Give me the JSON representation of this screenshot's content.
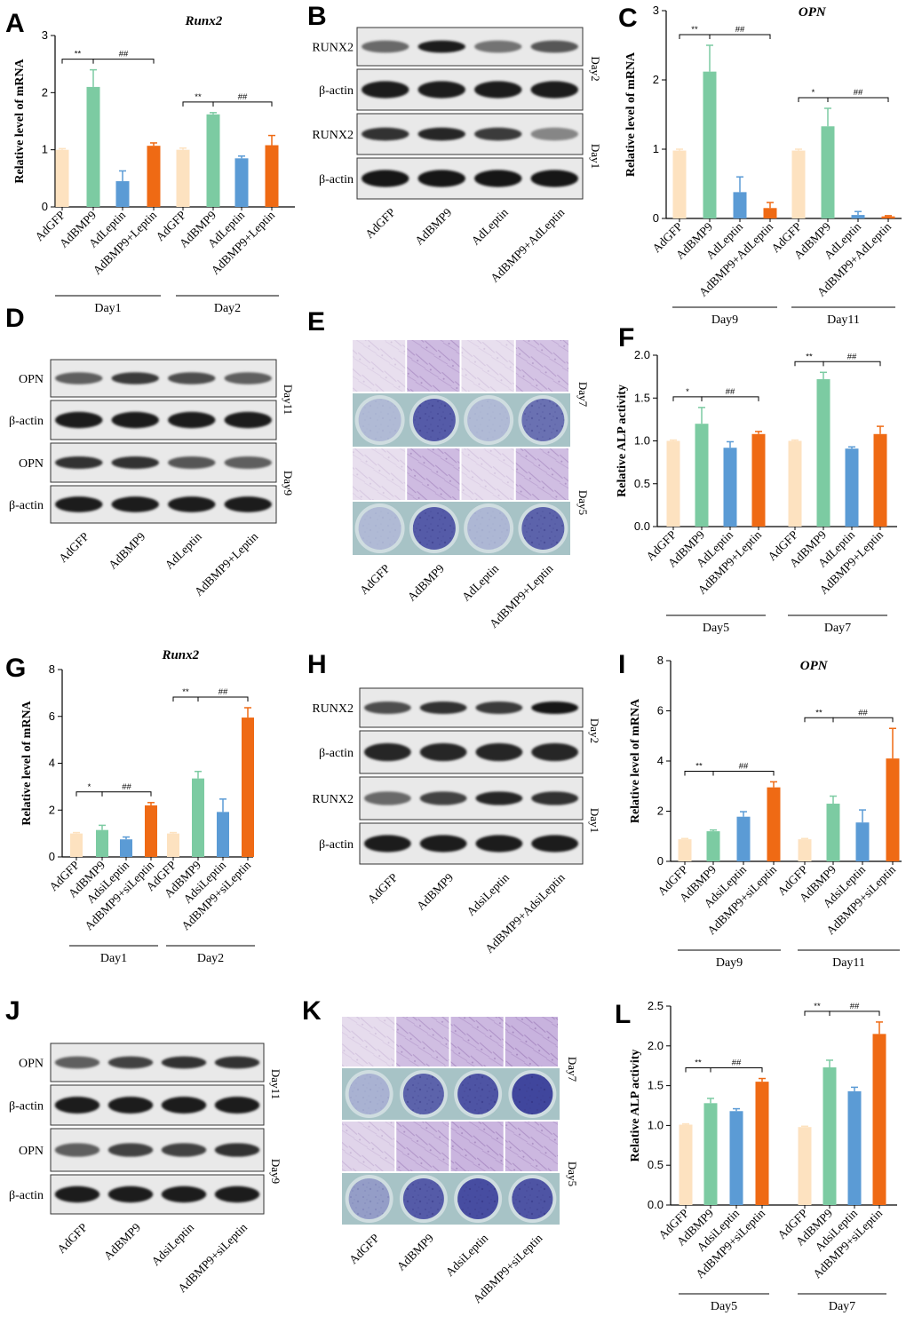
{
  "colors": {
    "AdGFP": "#fde2c0",
    "AdBMP9": "#7ccba2",
    "AdLeptin": "#5b9bd5",
    "Combo": "#ef6a14"
  },
  "panels": {
    "A": {
      "letter": "A"
    },
    "B": {
      "letter": "B"
    },
    "C": {
      "letter": "C"
    },
    "D": {
      "letter": "D"
    },
    "E": {
      "letter": "E"
    },
    "F": {
      "letter": "F"
    },
    "G": {
      "letter": "G"
    },
    "H": {
      "letter": "H"
    },
    "I": {
      "letter": "I"
    },
    "J": {
      "letter": "J"
    },
    "K": {
      "letter": "K"
    },
    "L": {
      "letter": "L"
    }
  },
  "chart_data": [
    {
      "id": "A",
      "type": "bar",
      "title": "Runx2",
      "ylabel": "Relative level of mRNA",
      "ylim": [
        0,
        3
      ],
      "yticks": [
        "0",
        "1",
        "2",
        "3"
      ],
      "categories": [
        "AdGFP",
        "AdBMP9",
        "AdLeptin",
        "AdBMP9+Leptin",
        "AdGFP",
        "AdBMP9",
        "AdLeptin",
        "AdBMP9+Leptin"
      ],
      "values": [
        1.0,
        2.1,
        0.45,
        1.07,
        1.0,
        1.62,
        0.85,
        1.08
      ],
      "errors": [
        0.02,
        0.3,
        0.18,
        0.05,
        0.03,
        0.03,
        0.04,
        0.17
      ],
      "groups": [
        {
          "name": "Day1"
        },
        {
          "name": "Day2"
        }
      ],
      "sig": [
        {
          "pair": [
            0,
            1
          ],
          "label": "**"
        },
        {
          "pair": [
            1,
            3
          ],
          "label": "##"
        },
        {
          "pair": [
            4,
            5
          ],
          "label": "**"
        },
        {
          "pair": [
            5,
            7
          ],
          "label": "##"
        }
      ]
    },
    {
      "id": "C",
      "type": "bar",
      "title": "OPN",
      "ylabel": "Relative level of mRNA",
      "ylim": [
        0,
        3
      ],
      "yticks": [
        "0",
        "1",
        "2",
        "3"
      ],
      "categories": [
        "AdGFP",
        "AdBMP9",
        "AdLeptin",
        "AdBMP9+AdLeptin",
        "AdGFP",
        "AdBMP9",
        "AdLeptin",
        "AdBMP9+AdLeptin"
      ],
      "values": [
        0.98,
        2.12,
        0.38,
        0.15,
        0.98,
        1.33,
        0.05,
        0.03
      ],
      "errors": [
        0.02,
        0.38,
        0.22,
        0.08,
        0.02,
        0.26,
        0.05,
        0.01
      ],
      "groups": [
        {
          "name": "Day9"
        },
        {
          "name": "Day11"
        }
      ],
      "sig": [
        {
          "pair": [
            0,
            1
          ],
          "label": "**"
        },
        {
          "pair": [
            1,
            3
          ],
          "label": "##"
        },
        {
          "pair": [
            4,
            5
          ],
          "label": "*"
        },
        {
          "pair": [
            5,
            7
          ],
          "label": "##"
        }
      ]
    },
    {
      "id": "F",
      "type": "bar",
      "title": "",
      "ylabel": "Relative ALP activity",
      "ylim": [
        0,
        2
      ],
      "yticks": [
        "0.0",
        "0.5",
        "1.0",
        "1.5",
        "2.0"
      ],
      "categories": [
        "AdGFP",
        "AdBMP9",
        "AdLeptin",
        "AdBMP9+Leptin",
        "AdGFP",
        "AdBMP9",
        "AdLeptin",
        "AdBMP9+Leptin"
      ],
      "values": [
        1.0,
        1.2,
        0.92,
        1.08,
        1.0,
        1.72,
        0.91,
        1.08
      ],
      "errors": [
        0.01,
        0.19,
        0.07,
        0.03,
        0.01,
        0.08,
        0.02,
        0.09
      ],
      "groups": [
        {
          "name": "Day5"
        },
        {
          "name": "Day7"
        }
      ],
      "sig": [
        {
          "pair": [
            0,
            1
          ],
          "label": "*"
        },
        {
          "pair": [
            1,
            3
          ],
          "label": "##"
        },
        {
          "pair": [
            4,
            5
          ],
          "label": "**"
        },
        {
          "pair": [
            5,
            7
          ],
          "label": "##"
        }
      ]
    },
    {
      "id": "G",
      "type": "bar",
      "title": "Runx2",
      "ylabel": "Relative level of mRNA",
      "ylim": [
        0,
        8
      ],
      "yticks": [
        "0",
        "2",
        "4",
        "6",
        "8"
      ],
      "categories": [
        "AdGFP",
        "AdBMP9",
        "AdsiLeptin",
        "AdBMP9+siLeptin",
        "AdGFP",
        "AdBMP9",
        "AdsiLeptin",
        "AdBMP9+siLeptin"
      ],
      "values": [
        1.0,
        1.15,
        0.75,
        2.2,
        1.0,
        3.35,
        1.92,
        5.95
      ],
      "errors": [
        0.04,
        0.2,
        0.1,
        0.12,
        0.04,
        0.3,
        0.55,
        0.42
      ],
      "groups": [
        {
          "name": "Day1"
        },
        {
          "name": "Day2"
        }
      ],
      "sig": [
        {
          "pair": [
            0,
            1
          ],
          "label": "*"
        },
        {
          "pair": [
            1,
            3
          ],
          "label": "##"
        },
        {
          "pair": [
            4,
            5
          ],
          "label": "**"
        },
        {
          "pair": [
            5,
            7
          ],
          "label": "##"
        }
      ]
    },
    {
      "id": "I",
      "type": "bar",
      "title": "OPN",
      "ylabel": "Relative level of mRNA",
      "ylim": [
        0,
        8
      ],
      "yticks": [
        "0",
        "2",
        "4",
        "6",
        "8"
      ],
      "categories": [
        "AdGFP",
        "AdBMP9",
        "AdsiLeptin",
        "AdBMP9+siLeptin",
        "AdGFP",
        "AdBMP9",
        "AdsiLeptin",
        "AdBMP9+siLeptin"
      ],
      "values": [
        0.88,
        1.2,
        1.78,
        2.95,
        0.88,
        2.3,
        1.55,
        4.1
      ],
      "errors": [
        0.03,
        0.05,
        0.2,
        0.22,
        0.03,
        0.3,
        0.5,
        1.2
      ],
      "groups": [
        {
          "name": "Day9"
        },
        {
          "name": "Day11"
        }
      ],
      "sig": [
        {
          "pair": [
            0,
            1
          ],
          "label": "**"
        },
        {
          "pair": [
            1,
            3
          ],
          "label": "##"
        },
        {
          "pair": [
            4,
            5
          ],
          "label": "**"
        },
        {
          "pair": [
            5,
            7
          ],
          "label": "##"
        }
      ]
    },
    {
      "id": "L",
      "type": "bar",
      "title": "",
      "ylabel": "Relative ALP activity",
      "ylim": [
        0,
        2.5
      ],
      "yticks": [
        "0.0",
        "0.5",
        "1.0",
        "1.5",
        "2.0",
        "2.5"
      ],
      "categories": [
        "AdGFP",
        "AdBMP9",
        "AdsiLeptin",
        "AdBMP9+siLeptin",
        "AdGFP",
        "AdBMP9",
        "AdsiLeptin",
        "AdBMP9+siLeptin"
      ],
      "values": [
        1.01,
        1.28,
        1.18,
        1.55,
        0.98,
        1.73,
        1.43,
        2.15
      ],
      "errors": [
        0.01,
        0.06,
        0.03,
        0.04,
        0.01,
        0.09,
        0.05,
        0.15
      ],
      "groups": [
        {
          "name": "Day5"
        },
        {
          "name": "Day7"
        }
      ],
      "sig": [
        {
          "pair": [
            0,
            1
          ],
          "label": "**"
        },
        {
          "pair": [
            1,
            3
          ],
          "label": "##"
        },
        {
          "pair": [
            4,
            5
          ],
          "label": "**"
        },
        {
          "pair": [
            5,
            7
          ],
          "label": "##"
        }
      ]
    }
  ],
  "blots": {
    "B": {
      "rows": [
        "RUNX2",
        "β-actin",
        "RUNX2",
        "β-actin"
      ],
      "days": [
        "Day2",
        "Day1"
      ],
      "lanes": [
        "AdGFP",
        "AdBMP9",
        "AdLeptin",
        "AdBMP9+AdLeptin"
      ],
      "intensity": [
        [
          0.5,
          0.9,
          0.45,
          0.6
        ],
        [
          0.9,
          0.9,
          0.9,
          0.9
        ],
        [
          0.8,
          0.85,
          0.75,
          0.35
        ],
        [
          0.95,
          0.95,
          0.95,
          0.95
        ]
      ]
    },
    "D": {
      "rows": [
        "OPN",
        "β-actin",
        "OPN",
        "β-actin"
      ],
      "days": [
        "Day11",
        "Day9"
      ],
      "lanes": [
        "AdGFP",
        "AdBMP9",
        "AdLeptin",
        "AdBMP9+Leptin"
      ],
      "intensity": [
        [
          0.55,
          0.75,
          0.65,
          0.55
        ],
        [
          0.9,
          0.9,
          0.9,
          0.9
        ],
        [
          0.8,
          0.8,
          0.6,
          0.55
        ],
        [
          0.9,
          0.9,
          0.9,
          0.9
        ]
      ]
    },
    "H": {
      "rows": [
        "RUNX2",
        "β-actin",
        "RUNX2",
        "β-actin"
      ],
      "days": [
        "Day2",
        "Day1"
      ],
      "lanes": [
        "AdGFP",
        "AdBMP9",
        "AdsiLeptin",
        "AdBMP9+AdsiLeptin"
      ],
      "intensity": [
        [
          0.65,
          0.8,
          0.75,
          0.95
        ],
        [
          0.85,
          0.85,
          0.85,
          0.85
        ],
        [
          0.5,
          0.7,
          0.85,
          0.8
        ],
        [
          0.9,
          0.9,
          0.9,
          0.9
        ]
      ]
    },
    "J": {
      "rows": [
        "OPN",
        "β-actin",
        "OPN",
        "β-actin"
      ],
      "days": [
        "Day11",
        "Day9"
      ],
      "lanes": [
        "AdGFP",
        "AdBMP9",
        "AdsiLeptin",
        "AdBMP9+siLeptin"
      ],
      "intensity": [
        [
          0.55,
          0.7,
          0.8,
          0.8
        ],
        [
          0.9,
          0.9,
          0.9,
          0.9
        ],
        [
          0.55,
          0.7,
          0.7,
          0.8
        ],
        [
          0.9,
          0.9,
          0.9,
          0.9
        ]
      ]
    }
  },
  "stains": {
    "E": {
      "days": [
        "Day7",
        "Day5"
      ],
      "lanes": [
        "AdGFP",
        "AdBMP9",
        "AdLeptin",
        "AdBMP9+Leptin"
      ],
      "intensity": [
        [
          0.1,
          0.75,
          0.1,
          0.6
        ],
        [
          0.1,
          0.75,
          0.12,
          0.7
        ]
      ]
    },
    "K": {
      "days": [
        "Day7",
        "Day5"
      ],
      "lanes": [
        "AdGFP",
        "AdBMP9",
        "AdsiLeptin",
        "AdBMP9+siLeptin"
      ],
      "intensity": [
        [
          0.15,
          0.7,
          0.8,
          0.9
        ],
        [
          0.3,
          0.75,
          0.85,
          0.8
        ]
      ]
    }
  }
}
